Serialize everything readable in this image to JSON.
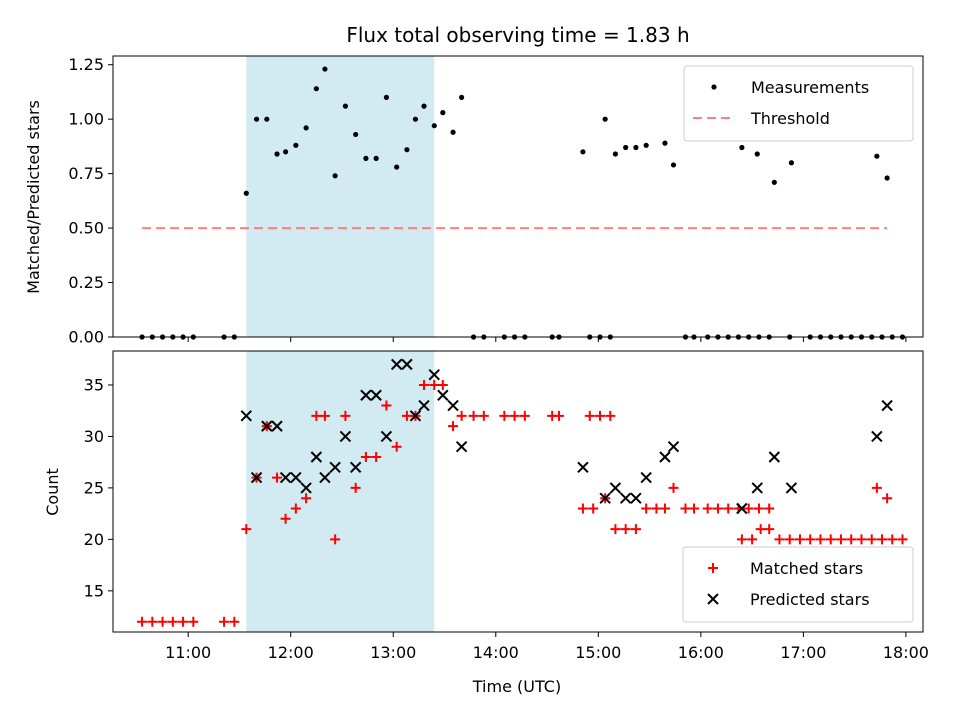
{
  "chart_data": [
    {
      "type": "scatter",
      "title": "Flux total observing time = 1.83 h",
      "xlabel": "",
      "ylabel": "Matched/Predicted stars",
      "xlim": [
        "10:16",
        "18:10"
      ],
      "ylim": [
        0,
        1.29
      ],
      "yticks": [
        0,
        0.25,
        0.5,
        0.75,
        1.0,
        1.25
      ],
      "ytick_labels": [
        "0.00",
        "0.25",
        "0.50",
        "0.75",
        "1.00",
        "1.25"
      ],
      "xticks": [
        "11:00",
        "12:00",
        "13:00",
        "14:00",
        "15:00",
        "16:00",
        "17:00",
        "18:00"
      ],
      "shaded_interval": {
        "start": "11:34",
        "end": "13:24",
        "color": "#add8e6"
      },
      "legend_position": "top-right",
      "legend": [
        "Measurements",
        "Threshold"
      ],
      "series": [
        {
          "name": "Measurements",
          "marker": "dot",
          "color": "#000000",
          "points": [
            [
              "10:33",
              0
            ],
            [
              "10:39",
              0
            ],
            [
              "10:45",
              0
            ],
            [
              "10:51",
              0
            ],
            [
              "10:57",
              0
            ],
            [
              "11:03",
              0
            ],
            [
              "11:21",
              0
            ],
            [
              "11:27",
              0
            ],
            [
              "11:34",
              0.66
            ],
            [
              "11:40",
              1.0
            ],
            [
              "11:46",
              1.0
            ],
            [
              "11:52",
              0.84
            ],
            [
              "11:57",
              0.85
            ],
            [
              "12:03",
              0.88
            ],
            [
              "12:09",
              0.96
            ],
            [
              "12:15",
              1.14
            ],
            [
              "12:20",
              1.23
            ],
            [
              "12:26",
              0.74
            ],
            [
              "12:32",
              1.06
            ],
            [
              "12:38",
              0.93
            ],
            [
              "12:44",
              0.82
            ],
            [
              "12:50",
              0.82
            ],
            [
              "12:56",
              1.1
            ],
            [
              "13:02",
              0.78
            ],
            [
              "13:08",
              0.86
            ],
            [
              "13:13",
              1.0
            ],
            [
              "13:18",
              1.06
            ],
            [
              "13:24",
              0.97
            ],
            [
              "13:29",
              1.03
            ],
            [
              "13:35",
              0.94
            ],
            [
              "13:40",
              1.1
            ],
            [
              "13:47",
              0
            ],
            [
              "13:53",
              0
            ],
            [
              "14:05",
              0
            ],
            [
              "14:11",
              0
            ],
            [
              "14:17",
              0
            ],
            [
              "14:33",
              0
            ],
            [
              "14:37",
              0
            ],
            [
              "14:55",
              0
            ],
            [
              "15:01",
              0
            ],
            [
              "15:07",
              0
            ],
            [
              "14:51",
              0.85
            ],
            [
              "15:04",
              1.0
            ],
            [
              "15:10",
              0.84
            ],
            [
              "15:16",
              0.87
            ],
            [
              "15:22",
              0.87
            ],
            [
              "15:28",
              0.88
            ],
            [
              "15:39",
              0.89
            ],
            [
              "15:44",
              0.79
            ],
            [
              "15:51",
              0
            ],
            [
              "15:56",
              0
            ],
            [
              "16:04",
              0
            ],
            [
              "16:10",
              0
            ],
            [
              "16:16",
              0
            ],
            [
              "16:22",
              0
            ],
            [
              "16:28",
              0
            ],
            [
              "16:34",
              0
            ],
            [
              "16:40",
              0
            ],
            [
              "16:52",
              0
            ],
            [
              "17:04",
              0
            ],
            [
              "17:10",
              0
            ],
            [
              "17:16",
              0
            ],
            [
              "17:22",
              0
            ],
            [
              "17:28",
              0
            ],
            [
              "17:34",
              0
            ],
            [
              "17:40",
              0
            ],
            [
              "17:46",
              0
            ],
            [
              "17:52",
              0
            ],
            [
              "17:58",
              0
            ],
            [
              "16:24",
              0.87
            ],
            [
              "16:33",
              0.84
            ],
            [
              "16:43",
              0.71
            ],
            [
              "16:53",
              0.8
            ],
            [
              "17:43",
              0.83
            ],
            [
              "17:49",
              0.73
            ]
          ]
        },
        {
          "name": "Threshold",
          "style": "dashed",
          "color": "#ff7f7f",
          "x": [
            "10:33",
            "17:49"
          ],
          "values": [
            0.5,
            0.5
          ]
        }
      ]
    },
    {
      "type": "scatter",
      "title": "",
      "xlabel": "Time (UTC)",
      "ylabel": "Count",
      "xlim": [
        "10:16",
        "18:10"
      ],
      "ylim": [
        11,
        38.3
      ],
      "yticks": [
        15,
        20,
        25,
        30,
        35
      ],
      "ytick_labels": [
        "15",
        "20",
        "25",
        "30",
        "35"
      ],
      "xticks": [
        "11:00",
        "12:00",
        "13:00",
        "14:00",
        "15:00",
        "16:00",
        "17:00",
        "18:00"
      ],
      "xtick_labels": [
        "11:00",
        "12:00",
        "13:00",
        "14:00",
        "15:00",
        "16:00",
        "17:00",
        "18:00"
      ],
      "shaded_interval": {
        "start": "11:34",
        "end": "13:24",
        "color": "#add8e6"
      },
      "legend_position": "bottom-right",
      "legend": [
        "Matched stars",
        "Predicted stars"
      ],
      "series": [
        {
          "name": "Matched stars",
          "marker": "plus",
          "color": "#ff0000",
          "points": [
            [
              "10:33",
              12
            ],
            [
              "10:39",
              12
            ],
            [
              "10:45",
              12
            ],
            [
              "10:51",
              12
            ],
            [
              "10:57",
              12
            ],
            [
              "11:03",
              12
            ],
            [
              "11:21",
              12
            ],
            [
              "11:27",
              12
            ],
            [
              "11:34",
              21
            ],
            [
              "11:40",
              26
            ],
            [
              "11:46",
              31
            ],
            [
              "11:52",
              26
            ],
            [
              "11:57",
              22
            ],
            [
              "12:03",
              23
            ],
            [
              "12:09",
              24
            ],
            [
              "12:15",
              32
            ],
            [
              "12:20",
              32
            ],
            [
              "12:26",
              20
            ],
            [
              "12:32",
              32
            ],
            [
              "12:38",
              25
            ],
            [
              "12:44",
              28
            ],
            [
              "12:50",
              28
            ],
            [
              "12:56",
              33
            ],
            [
              "13:02",
              29
            ],
            [
              "13:08",
              32
            ],
            [
              "13:13",
              32
            ],
            [
              "13:18",
              35
            ],
            [
              "13:24",
              35
            ],
            [
              "13:29",
              35
            ],
            [
              "13:35",
              31
            ],
            [
              "13:40",
              32
            ],
            [
              "13:47",
              32
            ],
            [
              "13:53",
              32
            ],
            [
              "14:05",
              32
            ],
            [
              "14:11",
              32
            ],
            [
              "14:17",
              32
            ],
            [
              "14:33",
              32
            ],
            [
              "14:37",
              32
            ],
            [
              "14:55",
              32
            ],
            [
              "15:01",
              32
            ],
            [
              "15:07",
              32
            ],
            [
              "14:51",
              23
            ],
            [
              "14:57",
              23
            ],
            [
              "15:04",
              24
            ],
            [
              "15:10",
              21
            ],
            [
              "15:16",
              21
            ],
            [
              "15:22",
              21
            ],
            [
              "15:28",
              23
            ],
            [
              "15:34",
              23
            ],
            [
              "15:39",
              23
            ],
            [
              "15:44",
              25
            ],
            [
              "15:51",
              23
            ],
            [
              "15:56",
              23
            ],
            [
              "16:04",
              23
            ],
            [
              "16:10",
              23
            ],
            [
              "16:16",
              23
            ],
            [
              "16:22",
              23
            ],
            [
              "16:28",
              23
            ],
            [
              "16:34",
              23
            ],
            [
              "16:40",
              23
            ],
            [
              "16:24",
              20
            ],
            [
              "16:30",
              20
            ],
            [
              "16:35",
              21
            ],
            [
              "16:40",
              21
            ],
            [
              "16:46",
              20
            ],
            [
              "16:52",
              20
            ],
            [
              "16:58",
              20
            ],
            [
              "17:04",
              20
            ],
            [
              "17:10",
              20
            ],
            [
              "17:16",
              20
            ],
            [
              "17:22",
              20
            ],
            [
              "17:28",
              20
            ],
            [
              "17:34",
              20
            ],
            [
              "17:40",
              20
            ],
            [
              "17:46",
              20
            ],
            [
              "17:52",
              20
            ],
            [
              "17:58",
              20
            ],
            [
              "17:43",
              25
            ],
            [
              "17:49",
              24
            ]
          ]
        },
        {
          "name": "Predicted stars",
          "marker": "x",
          "color": "#000000",
          "points": [
            [
              "11:34",
              32
            ],
            [
              "11:40",
              26
            ],
            [
              "11:46",
              31
            ],
            [
              "11:52",
              31
            ],
            [
              "11:57",
              26
            ],
            [
              "12:03",
              26
            ],
            [
              "12:09",
              25
            ],
            [
              "12:15",
              28
            ],
            [
              "12:20",
              26
            ],
            [
              "12:26",
              27
            ],
            [
              "12:32",
              30
            ],
            [
              "12:38",
              27
            ],
            [
              "12:44",
              34
            ],
            [
              "12:50",
              34
            ],
            [
              "12:56",
              30
            ],
            [
              "13:02",
              37
            ],
            [
              "13:08",
              37
            ],
            [
              "13:13",
              32
            ],
            [
              "13:18",
              33
            ],
            [
              "13:24",
              36
            ],
            [
              "13:29",
              34
            ],
            [
              "13:35",
              33
            ],
            [
              "13:40",
              29
            ],
            [
              "14:51",
              27
            ],
            [
              "15:04",
              24
            ],
            [
              "15:10",
              25
            ],
            [
              "15:16",
              24
            ],
            [
              "15:22",
              24
            ],
            [
              "15:28",
              26
            ],
            [
              "15:39",
              28
            ],
            [
              "15:44",
              29
            ],
            [
              "16:24",
              23
            ],
            [
              "16:33",
              25
            ],
            [
              "16:43",
              28
            ],
            [
              "16:53",
              25
            ],
            [
              "17:43",
              30
            ],
            [
              "17:49",
              33
            ]
          ]
        }
      ]
    }
  ]
}
